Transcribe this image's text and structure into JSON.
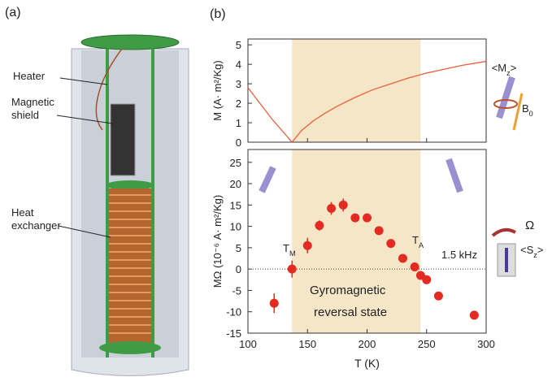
{
  "panel_a": {
    "label": "(a)",
    "callouts": [
      "Heater",
      "Magnetic",
      "shield",
      "Heat",
      "exchanger"
    ]
  },
  "panel_b": {
    "label": "(b)"
  },
  "chart_data": [
    {
      "type": "line",
      "ylabel": "M (A· m²/Kg)",
      "x": [
        100,
        105,
        110,
        115,
        120,
        125,
        130,
        137,
        145,
        155,
        165,
        175,
        190,
        205,
        220,
        235,
        250,
        265,
        280,
        290,
        300
      ],
      "series": [
        {
          "name": "M",
          "color": "#e8603c",
          "values": [
            2.8,
            2.4,
            2.0,
            1.6,
            1.2,
            0.85,
            0.5,
            0.0,
            0.6,
            1.1,
            1.5,
            1.85,
            2.3,
            2.7,
            3.0,
            3.3,
            3.55,
            3.75,
            3.95,
            4.05,
            4.15
          ]
        }
      ],
      "xlim": [
        100,
        300
      ],
      "xticks": [
        100,
        150,
        200,
        250,
        300
      ],
      "xtick_labels": false,
      "ylim": [
        0,
        5.3
      ],
      "yticks": [
        0,
        1,
        2,
        3,
        4,
        5
      ],
      "shaded_xrange": [
        137,
        245
      ],
      "shade_color": "#f5e6c8",
      "icon_labels": {
        "moment": [
          "<M",
          "z",
          ">"
        ],
        "field": [
          "B",
          "0"
        ]
      }
    },
    {
      "type": "scatter",
      "ylabel": "MΩ (10⁻⁶ A· m²/Kg)",
      "xlabel": "T (K)",
      "color": "#e32b22",
      "x": [
        122,
        137,
        150,
        160,
        170,
        180,
        190,
        200,
        210,
        220,
        230,
        240,
        245,
        250,
        260,
        290
      ],
      "values": [
        -8,
        0,
        5.5,
        10.2,
        14.2,
        15,
        12,
        12,
        9,
        6,
        2.5,
        0.5,
        -1.5,
        -2.5,
        -6.3,
        -10.8
      ],
      "errors": [
        2.3,
        2,
        1.8,
        1.2,
        1.5,
        1.5,
        1,
        1,
        0.8,
        0.6,
        0.6,
        0.5,
        0.4,
        0.4,
        0.4,
        0.4
      ],
      "xlim": [
        100,
        300
      ],
      "xticks": [
        100,
        150,
        200,
        250,
        300
      ],
      "ylim": [
        -15,
        28
      ],
      "yticks": [
        -15,
        -10,
        -5,
        0,
        5,
        10,
        15,
        20,
        25
      ],
      "zero_line": true,
      "shaded_xrange": [
        137,
        245
      ],
      "shade_color": "#f5e6c8",
      "annotations": {
        "tm": [
          "T",
          "M"
        ],
        "ta": [
          "T",
          "A"
        ],
        "freq": "1.5 kHz",
        "state": [
          "Gyromagnetic",
          "reversal state"
        ]
      },
      "icon_labels": {
        "rotation": "Ω",
        "spin": [
          "<S",
          "z",
          ">"
        ]
      }
    }
  ]
}
